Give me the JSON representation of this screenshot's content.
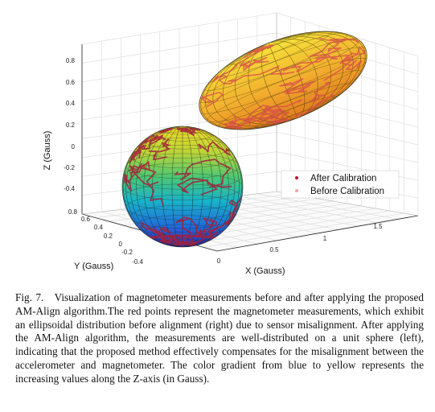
{
  "chart_data": {
    "type": "scatter",
    "subtype": "3d-surface-scatter",
    "xlabel": "X (Gauss)",
    "ylabel": "Y (Gauss)",
    "zlabel": "Z (Gauss)",
    "x_ticks": [
      "0",
      "0.5",
      "1",
      "1.5"
    ],
    "y_ticks": [
      "0.8",
      "0.6",
      "0.4",
      "0.2",
      "0",
      "-0.2",
      "-0.4"
    ],
    "z_ticks": [
      "0.8",
      "0.6",
      "0.4",
      "0.2",
      "0",
      "-0.2",
      "-0.4"
    ],
    "legend": {
      "position": "right-middle",
      "entries": [
        {
          "label": "After Calibration",
          "color": "#b2182b"
        },
        {
          "label": "Before Calibration",
          "color": "#f4a3a8"
        }
      ]
    },
    "grid": true,
    "colormap": "parula (blue to yellow, increasing Z)",
    "series": [
      {
        "name": "After Calibration",
        "shape": "unit sphere",
        "center": [
          0,
          0,
          0
        ],
        "radii": [
          1,
          1,
          1
        ]
      },
      {
        "name": "Before Calibration",
        "shape": "ellipsoid",
        "center": [
          1.3,
          0.6,
          0.55
        ],
        "radii": [
          0.9,
          0.4,
          0.35
        ]
      }
    ]
  },
  "caption": {
    "label": "Fig. 7.",
    "text": "Visualization of magnetometer measurements before and after applying the proposed AM-Align algorithm.The red points represent the magnetometer measurements, which exhibit an ellipsoidal distribution before alignment (right) due to sensor misalignment. After applying the AM-Align algorithm, the measurements are well-distributed on a unit sphere (left), indicating that the proposed method effectively compensates for the misalignment between the accelerometer and magnetometer. The color gradient from blue to yellow represents the increasing values along the Z-axis (in Gauss)."
  }
}
